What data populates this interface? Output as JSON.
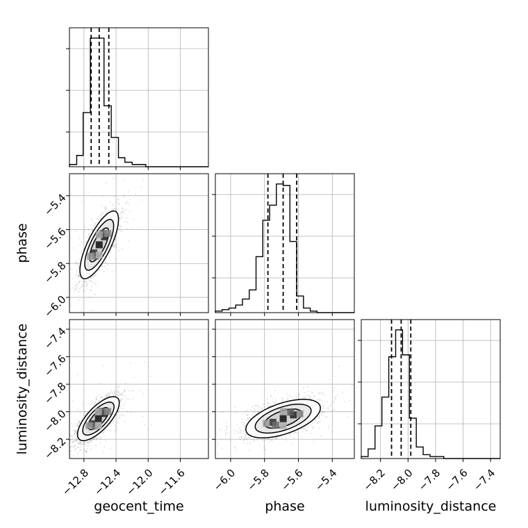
{
  "chart_data": {
    "type": "corner",
    "parameters": [
      "geocent_time",
      "phase",
      "luminosity_distance"
    ],
    "axis_labels": {
      "x": [
        "geocent_time",
        "phase",
        "luminosity_distance"
      ],
      "y": [
        "phase",
        "luminosity_distance"
      ]
    },
    "ranges": {
      "geocent_time": [
        -12.98,
        -11.25
      ],
      "phase": [
        -6.09,
        -5.27
      ],
      "luminosity_distance": [
        -8.34,
        -7.33
      ]
    },
    "ticks": {
      "geocent_time": [
        -12.8,
        -12.4,
        -12.0,
        -11.6
      ],
      "phase": [
        -6.0,
        -5.8,
        -5.6,
        -5.4
      ],
      "luminosity_distance": [
        -8.2,
        -8.0,
        -7.8,
        -7.6,
        -7.4
      ]
    },
    "tick_labels": {
      "geocent_time": [
        "−12.8",
        "−12.4",
        "−12.0",
        "−11.6"
      ],
      "phase": [
        "−6.0",
        "−5.8",
        "−5.6",
        "−5.4"
      ],
      "luminosity_distance": [
        "−8.2",
        "−8.0",
        "−7.8",
        "−7.6",
        "−7.4"
      ]
    },
    "quantiles": {
      "geocent_time": [
        -12.71,
        -12.61,
        -12.49
      ],
      "phase": [
        -5.78,
        -5.69,
        -5.61
      ],
      "luminosity_distance": [
        -8.12,
        -8.05,
        -7.98
      ]
    },
    "histograms": {
      "geocent_time": {
        "bin_edges": [
          -12.98,
          -12.89,
          -12.81,
          -12.72,
          -12.63,
          -12.55,
          -12.46,
          -12.37,
          -12.29,
          -12.2,
          -12.11,
          -12.03,
          -11.94,
          -11.85
        ],
        "counts": [
          1,
          5,
          24,
          57,
          57,
          27,
          13,
          4,
          2,
          1,
          1,
          0,
          0
        ]
      },
      "phase": {
        "bin_edges": [
          -6.09,
          -6.05,
          -6.01,
          -5.97,
          -5.93,
          -5.89,
          -5.85,
          -5.81,
          -5.77,
          -5.73,
          -5.69,
          -5.65,
          -5.61,
          -5.57,
          -5.53,
          -5.49,
          -5.45
        ],
        "counts": [
          1,
          2,
          3,
          5,
          9,
          15,
          37,
          61,
          71,
          85,
          84,
          47,
          11,
          3,
          1,
          0
        ]
      },
      "luminosity_distance": {
        "bin_edges": [
          -8.34,
          -8.29,
          -8.24,
          -8.19,
          -8.14,
          -8.09,
          -8.04,
          -7.99,
          -7.94,
          -7.89,
          -7.84,
          -7.79,
          -7.74
        ],
        "counts": [
          1,
          5,
          17,
          32,
          53,
          67,
          54,
          21,
          6,
          2,
          1,
          1
        ]
      }
    },
    "pairs": [
      {
        "x": "geocent_time",
        "y": "phase",
        "mean": [
          -12.61,
          -5.69
        ],
        "sd": [
          0.12,
          0.1
        ],
        "rho": 0.75
      },
      {
        "x": "geocent_time",
        "y": "luminosity_distance",
        "mean": [
          -12.62,
          -8.05
        ],
        "sd": [
          0.13,
          0.08
        ],
        "rho": 0.72
      },
      {
        "x": "phase",
        "y": "luminosity_distance",
        "mean": [
          -5.69,
          -8.05
        ],
        "sd": [
          0.11,
          0.07
        ],
        "rho": 0.55
      }
    ],
    "grid": true,
    "colors": {
      "line": "#000000",
      "grid": "#b0b0b0",
      "points": "#555555"
    }
  }
}
